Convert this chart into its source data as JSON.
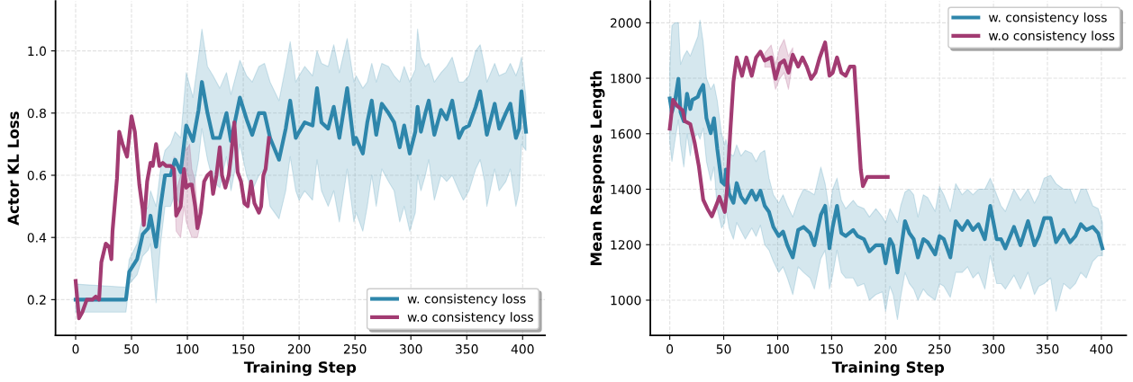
{
  "chart_data": [
    {
      "type": "line",
      "xlabel": "Training Step",
      "ylabel": "Actor KL Loss",
      "xlim": [
        -18,
        420
      ],
      "ylim": [
        0.085,
        1.16
      ],
      "xticks": [
        0,
        50,
        100,
        150,
        200,
        250,
        300,
        350,
        400
      ],
      "yticks": [
        0.2,
        0.4,
        0.6,
        0.8,
        {
          "value": 1.0,
          "label": "1.0"
        }
      ],
      "grid": true,
      "legend": "bottom right",
      "line_style": "solid",
      "marker": "none",
      "series": [
        {
          "name": "w. consistency loss",
          "color": "#2e86ab",
          "x": [
            0,
            45,
            48,
            55,
            60,
            65,
            67,
            72,
            76,
            80,
            85,
            89,
            94,
            99,
            105,
            110,
            113,
            118,
            123,
            129,
            135,
            139,
            147,
            153,
            158,
            164,
            169,
            174,
            182,
            188,
            192,
            197,
            200,
            205,
            212,
            216,
            220,
            226,
            231,
            236,
            243,
            249,
            251,
            257,
            261,
            265,
            269,
            274,
            280,
            285,
            290,
            294,
            299,
            304,
            306,
            309,
            313,
            316,
            321,
            327,
            332,
            337,
            343,
            347,
            352,
            358,
            362,
            366,
            368,
            375,
            379,
            385,
            389,
            394,
            397,
            399,
            403
          ],
          "values": [
            0.2,
            0.2,
            0.29,
            0.33,
            0.41,
            0.43,
            0.47,
            0.37,
            0.5,
            0.6,
            0.6,
            0.65,
            0.61,
            0.76,
            0.71,
            0.81,
            0.9,
            0.8,
            0.72,
            0.72,
            0.8,
            0.71,
            0.85,
            0.78,
            0.73,
            0.8,
            0.8,
            0.72,
            0.65,
            0.75,
            0.84,
            0.72,
            0.74,
            0.77,
            0.76,
            0.88,
            0.77,
            0.75,
            0.82,
            0.72,
            0.88,
            0.7,
            0.72,
            0.67,
            0.77,
            0.84,
            0.73,
            0.83,
            0.8,
            0.77,
            0.69,
            0.76,
            0.67,
            0.74,
            0.82,
            0.74,
            0.8,
            0.84,
            0.73,
            0.81,
            0.78,
            0.84,
            0.72,
            0.75,
            0.76,
            0.82,
            0.87,
            0.78,
            0.73,
            0.83,
            0.75,
            0.8,
            0.83,
            0.72,
            0.75,
            0.87,
            0.74
          ],
          "lower": [
            0.16,
            0.16,
            0.25,
            0.28,
            0.34,
            0.36,
            0.38,
            0.19,
            0.38,
            0.5,
            0.5,
            0.54,
            0.5,
            0.62,
            0.55,
            0.65,
            0.75,
            0.65,
            0.58,
            0.56,
            0.66,
            0.55,
            0.7,
            0.6,
            0.55,
            0.6,
            0.62,
            0.5,
            0.46,
            0.55,
            0.66,
            0.55,
            0.52,
            0.55,
            0.52,
            0.65,
            0.55,
            0.5,
            0.55,
            0.45,
            0.62,
            0.45,
            0.48,
            0.42,
            0.5,
            0.6,
            0.5,
            0.62,
            0.58,
            0.55,
            0.45,
            0.5,
            0.42,
            0.48,
            0.6,
            0.55,
            0.6,
            0.65,
            0.52,
            0.6,
            0.58,
            0.6,
            0.55,
            0.52,
            0.55,
            0.62,
            0.65,
            0.58,
            0.5,
            0.62,
            0.55,
            0.58,
            0.62,
            0.5,
            0.55,
            0.7,
            0.68
          ],
          "upper": [
            0.25,
            0.24,
            0.33,
            0.38,
            0.47,
            0.5,
            0.55,
            0.5,
            0.62,
            0.68,
            0.7,
            0.74,
            0.72,
            0.93,
            0.85,
            0.98,
            1.07,
            0.95,
            0.92,
            0.88,
            0.93,
            0.86,
            0.97,
            0.92,
            0.9,
            0.95,
            0.96,
            0.9,
            0.84,
            0.95,
            1.03,
            0.9,
            0.92,
            0.95,
            0.92,
            1.0,
            0.96,
            0.95,
            1.02,
            0.93,
            1.04,
            0.9,
            0.92,
            0.88,
            0.9,
            0.96,
            0.9,
            0.96,
            0.95,
            0.92,
            0.9,
            0.95,
            0.9,
            0.94,
            1.07,
            0.98,
            0.95,
            0.96,
            0.9,
            0.93,
            0.95,
            0.98,
            0.9,
            0.9,
            0.92,
            1.0,
            1.02,
            0.95,
            0.9,
            0.96,
            0.92,
            0.93,
            0.96,
            0.92,
            0.95,
            0.98,
            0.85
          ]
        },
        {
          "name": "w.o consistency loss",
          "color": "#a23b72",
          "x": [
            0,
            3,
            6,
            10,
            15,
            18,
            21,
            23,
            27,
            30,
            32,
            33,
            37,
            39,
            42,
            44,
            46,
            50,
            53,
            57,
            60,
            61,
            64,
            67,
            69,
            72,
            75,
            78,
            81,
            85,
            88,
            90,
            94,
            97,
            99,
            102,
            104,
            107,
            109,
            112,
            115,
            118,
            121,
            123,
            126,
            129,
            131,
            134,
            137,
            139,
            142,
            145,
            148,
            151,
            154,
            157,
            160,
            164,
            166,
            168,
            170,
            173
          ],
          "values": [
            0.26,
            0.14,
            0.16,
            0.2,
            0.2,
            0.21,
            0.2,
            0.32,
            0.38,
            0.37,
            0.33,
            0.42,
            0.59,
            0.74,
            0.7,
            0.68,
            0.66,
            0.79,
            0.74,
            0.57,
            0.49,
            0.44,
            0.58,
            0.64,
            0.63,
            0.7,
            0.63,
            0.64,
            0.63,
            0.63,
            0.62,
            0.47,
            0.5,
            0.62,
            0.56,
            0.57,
            0.57,
            0.5,
            0.43,
            0.48,
            0.58,
            0.6,
            0.61,
            0.54,
            0.6,
            0.69,
            0.6,
            0.56,
            0.6,
            0.66,
            0.77,
            0.61,
            0.58,
            0.51,
            0.5,
            0.58,
            0.51,
            0.48,
            0.5,
            0.6,
            0.62,
            0.72
          ],
          "lower": [
            null,
            null,
            null,
            null,
            null,
            null,
            null,
            null,
            null,
            null,
            null,
            null,
            null,
            null,
            null,
            null,
            null,
            null,
            null,
            null,
            null,
            null,
            null,
            null,
            null,
            null,
            null,
            null,
            null,
            null,
            0.58,
            0.42,
            0.4,
            0.5,
            0.45,
            0.42,
            0.4,
            0.4,
            0.4,
            0.45,
            null,
            null,
            null,
            null,
            null,
            null,
            null,
            null,
            null,
            null,
            null,
            null,
            null,
            null,
            null,
            null,
            null,
            null,
            null,
            null,
            null,
            null
          ],
          "upper": [
            null,
            null,
            null,
            null,
            null,
            null,
            null,
            null,
            null,
            null,
            null,
            null,
            null,
            null,
            null,
            null,
            null,
            null,
            null,
            null,
            null,
            null,
            null,
            null,
            null,
            null,
            null,
            null,
            null,
            null,
            0.66,
            0.55,
            0.6,
            0.72,
            0.68,
            0.7,
            0.62,
            0.58,
            0.48,
            0.52,
            null,
            null,
            null,
            null,
            null,
            null,
            null,
            null,
            null,
            null,
            null,
            null,
            null,
            null,
            null,
            null,
            null,
            null,
            null,
            null,
            null,
            null
          ]
        }
      ]
    },
    {
      "type": "line",
      "xlabel": "Training Step",
      "ylabel": "Mean Response Length",
      "xlim": [
        -18,
        423
      ],
      "ylim": [
        873,
        2078
      ],
      "xticks": [
        0,
        50,
        100,
        150,
        200,
        250,
        300,
        350,
        400
      ],
      "yticks": [
        1000,
        1200,
        1400,
        1600,
        1800,
        2000
      ],
      "grid": true,
      "legend": "top right",
      "line_style": "solid",
      "marker": "none",
      "series": [
        {
          "name": "w. consistency loss",
          "color": "#2e86ab",
          "x": [
            0,
            2,
            5,
            8,
            10,
            13,
            16,
            19,
            21,
            26,
            28,
            31,
            34,
            38,
            41,
            44,
            48,
            51,
            52,
            55,
            59,
            62,
            66,
            70,
            76,
            80,
            84,
            88,
            92,
            96,
            101,
            105,
            109,
            114,
            119,
            124,
            130,
            134,
            140,
            144,
            148,
            151,
            155,
            159,
            163,
            170,
            174,
            180,
            185,
            191,
            197,
            200,
            204,
            207,
            211,
            214,
            218,
            222,
            226,
            230,
            235,
            239,
            246,
            250,
            254,
            260,
            265,
            271,
            276,
            281,
            286,
            292,
            297,
            303,
            307,
            311,
            319,
            325,
            332,
            338,
            342,
            347,
            353,
            358,
            365,
            371,
            376,
            381,
            386,
            392,
            397,
            401
          ],
          "values": [
            1727,
            1678,
            1722,
            1798,
            1678,
            1645,
            1744,
            1689,
            1722,
            1733,
            1755,
            1776,
            1656,
            1602,
            1656,
            1547,
            1427,
            1416,
            1471,
            1384,
            1351,
            1422,
            1373,
            1351,
            1395,
            1362,
            1395,
            1340,
            1318,
            1264,
            1231,
            1247,
            1198,
            1154,
            1253,
            1264,
            1242,
            1198,
            1307,
            1340,
            1187,
            1264,
            1340,
            1242,
            1231,
            1253,
            1231,
            1220,
            1176,
            1198,
            1198,
            1133,
            1220,
            1198,
            1100,
            1176,
            1285,
            1242,
            1220,
            1154,
            1220,
            1209,
            1165,
            1231,
            1220,
            1154,
            1285,
            1253,
            1285,
            1253,
            1274,
            1220,
            1340,
            1220,
            1220,
            1187,
            1264,
            1198,
            1285,
            1198,
            1231,
            1296,
            1296,
            1209,
            1253,
            1209,
            1231,
            1274,
            1253,
            1264,
            1242,
            1187
          ],
          "lower": [
            1570,
            1500,
            1580,
            1650,
            1560,
            1480,
            1600,
            1520,
            1580,
            1600,
            1580,
            1620,
            1500,
            1430,
            1480,
            1330,
            1260,
            1280,
            1330,
            1260,
            1220,
            1280,
            1250,
            1220,
            1260,
            1230,
            1270,
            1200,
            1180,
            1140,
            1100,
            1120,
            1080,
            1020,
            1120,
            1100,
            1080,
            1040,
            1150,
            1180,
            1040,
            1090,
            1180,
            1100,
            1080,
            1080,
            1050,
            1060,
            1000,
            1020,
            1030,
            960,
            1050,
            1020,
            930,
            1010,
            1100,
            1060,
            1040,
            1000,
            1040,
            1020,
            1000,
            1060,
            1050,
            1010,
            1100,
            1100,
            1120,
            1080,
            1100,
            1040,
            1160,
            1060,
            1060,
            1040,
            1090,
            1040,
            1100,
            1020,
            1050,
            1060,
            1080,
            960,
            1060,
            1040,
            1060,
            1100,
            1080,
            1140,
            1160,
            1160
          ],
          "upper": [
            1840,
            1990,
            2000,
            2000,
            1850,
            1880,
            1900,
            1880,
            1900,
            1950,
            2010,
            1930,
            1800,
            1760,
            1780,
            1720,
            1600,
            1560,
            1580,
            1530,
            1520,
            1560,
            1520,
            1540,
            1530,
            1500,
            1530,
            1540,
            1440,
            1380,
            1350,
            1380,
            1340,
            1300,
            1360,
            1400,
            1390,
            1380,
            1480,
            1420,
            1320,
            1400,
            1440,
            1360,
            1330,
            1360,
            1340,
            1330,
            1300,
            1330,
            1300,
            1280,
            1330,
            1310,
            1280,
            1340,
            1390,
            1400,
            1380,
            1300,
            1380,
            1370,
            1320,
            1410,
            1380,
            1320,
            1420,
            1380,
            1400,
            1380,
            1400,
            1400,
            1440,
            1380,
            1340,
            1320,
            1400,
            1360,
            1400,
            1350,
            1380,
            1440,
            1450,
            1420,
            1400,
            1400,
            1350,
            1400,
            1400,
            1340,
            1330,
            1280
          ]
        },
        {
          "name": "w.o consistency loss",
          "color": "#a23b72",
          "x": [
            0,
            3,
            7,
            12,
            14,
            19,
            23,
            27,
            31,
            35,
            39,
            44,
            46,
            51,
            53,
            56,
            59,
            62,
            67,
            71,
            76,
            80,
            84,
            88,
            94,
            98,
            102,
            106,
            110,
            114,
            119,
            123,
            127,
            131,
            135,
            139,
            144,
            148,
            151,
            155,
            159,
            163,
            167,
            171,
            174,
            177,
            179,
            183,
            202
          ],
          "values": [
            1618,
            1722,
            1700,
            1684,
            1645,
            1635,
            1569,
            1482,
            1362,
            1329,
            1302,
            1351,
            1373,
            1318,
            1395,
            1602,
            1787,
            1875,
            1809,
            1875,
            1809,
            1875,
            1896,
            1864,
            1875,
            1798,
            1853,
            1864,
            1820,
            1885,
            1842,
            1875,
            1842,
            1798,
            1820,
            1875,
            1929,
            1809,
            1820,
            1875,
            1820,
            1809,
            1842,
            1842,
            1656,
            1471,
            1411,
            1444,
            1444
          ],
          "lower": [
            null,
            null,
            null,
            null,
            null,
            null,
            null,
            null,
            null,
            null,
            null,
            null,
            null,
            null,
            null,
            null,
            null,
            null,
            null,
            null,
            null,
            null,
            null,
            1840,
            1840,
            1760,
            1800,
            1820,
            1760,
            1860,
            null,
            null,
            null,
            null,
            null,
            null,
            null,
            null,
            null,
            null,
            null,
            null,
            null,
            null,
            null,
            null,
            null,
            null,
            null
          ],
          "upper": [
            null,
            null,
            null,
            null,
            null,
            null,
            null,
            null,
            null,
            null,
            null,
            null,
            null,
            null,
            null,
            null,
            null,
            null,
            null,
            null,
            null,
            null,
            null,
            1890,
            1920,
            1850,
            1910,
            1940,
            1880,
            1910,
            null,
            null,
            null,
            null,
            null,
            null,
            null,
            null,
            null,
            null,
            null,
            null,
            null,
            null,
            null,
            null,
            null,
            null,
            null
          ]
        }
      ]
    }
  ]
}
